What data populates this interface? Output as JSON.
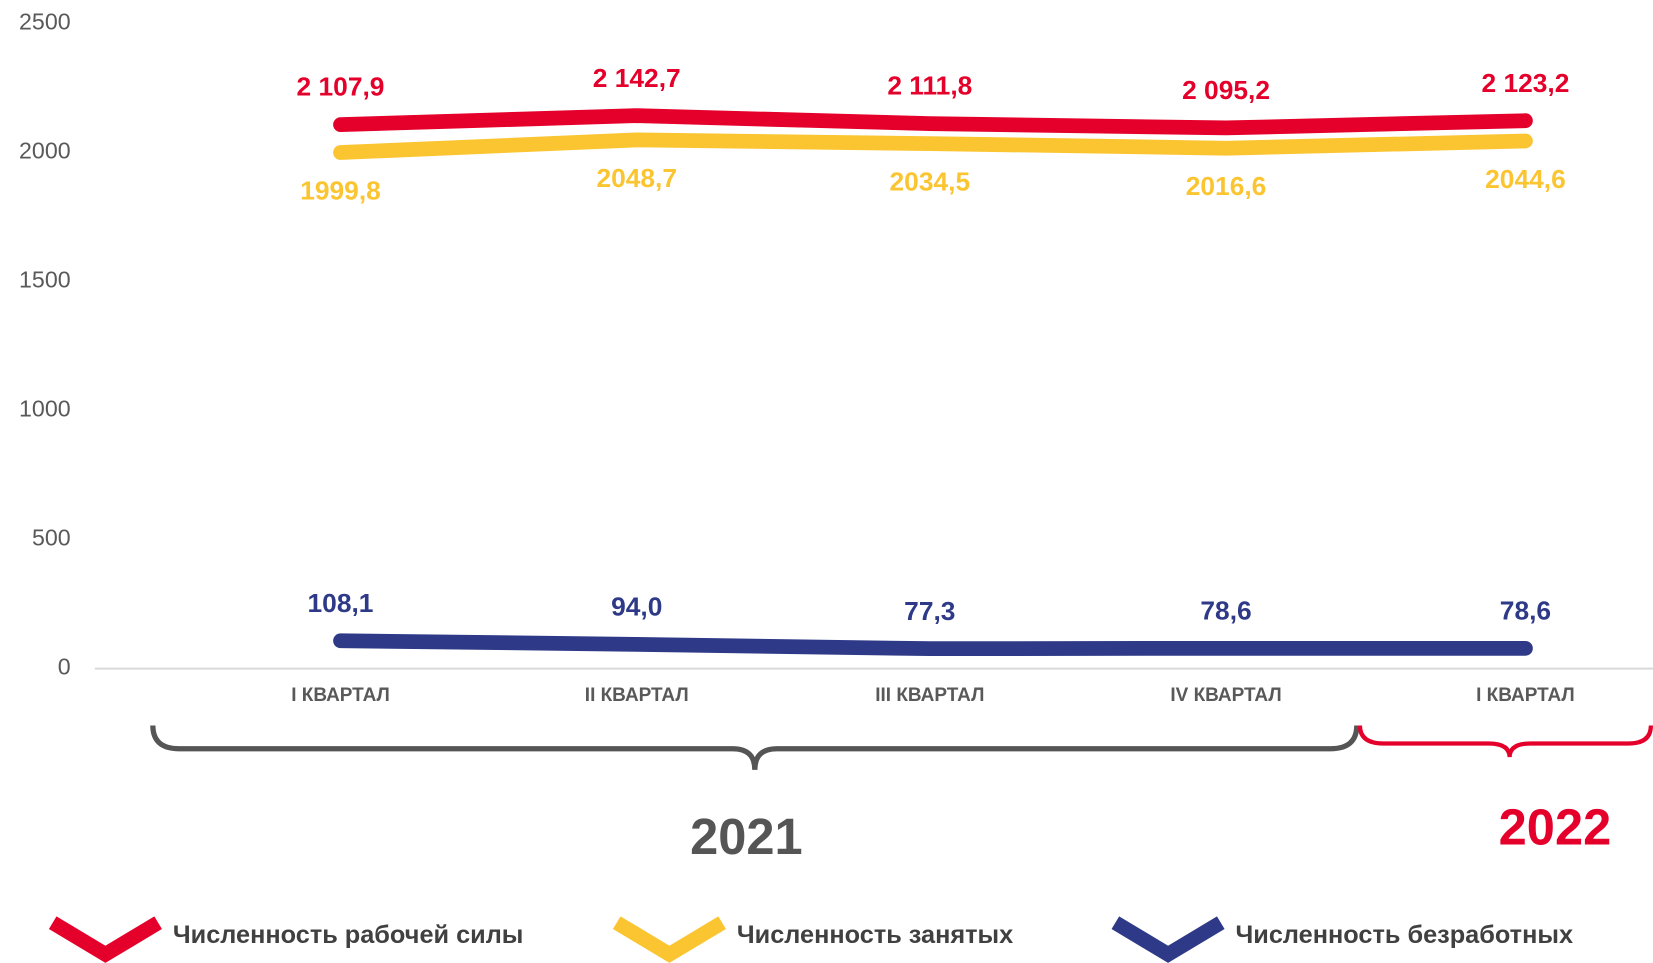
{
  "chart_data": {
    "type": "line",
    "categories": [
      "I КВАРТАЛ",
      "II КВАРТАЛ",
      "III КВАРТАЛ",
      "IV КВАРТАЛ",
      "I КВАРТАЛ"
    ],
    "series": [
      {
        "name": "Численность рабочей силы",
        "color": "#e4002b",
        "values": [
          2107.9,
          2142.7,
          2111.8,
          2095.2,
          2123.2
        ],
        "value_labels": [
          "2 107,9",
          "2 142,7",
          "2 111,8",
          "2 095,2",
          "2 123,2"
        ]
      },
      {
        "name": "Численность занятых",
        "color": "#fbc531",
        "values": [
          1999.8,
          2048.7,
          2034.5,
          2016.6,
          2044.6
        ],
        "value_labels": [
          "1999,8",
          "2048,7",
          "2034,5",
          "2016,6",
          "2044,6"
        ]
      },
      {
        "name": "Численность безработных",
        "color": "#2e3a87",
        "values": [
          108.1,
          94.0,
          77.3,
          78.6,
          78.6
        ],
        "value_labels": [
          "108,1",
          "94,0",
          "77,3",
          "78,6",
          "78,6"
        ]
      }
    ],
    "ylim": [
      0,
      2500
    ],
    "yticks": [
      0,
      500,
      1000,
      1500,
      2000,
      2500
    ],
    "groups": [
      {
        "label": "2021",
        "color": "#555555"
      },
      {
        "label": "2022",
        "color": "#e4002b"
      }
    ]
  }
}
